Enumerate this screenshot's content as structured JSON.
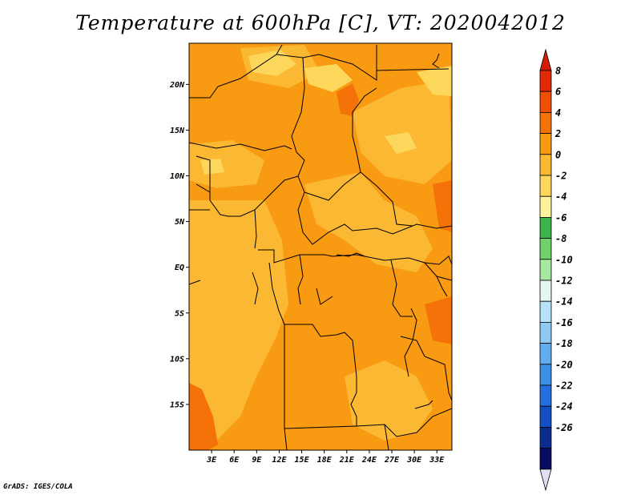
{
  "title": "Temperature at 600hPa [C], VT: 2020042012",
  "credit": "GrADS: IGES/COLA",
  "map": {
    "lon_range": [
      0,
      35
    ],
    "lat_range": [
      -20,
      24.5
    ],
    "lat_ticks": [
      {
        "value": 20,
        "label": "20N"
      },
      {
        "value": 15,
        "label": "15N"
      },
      {
        "value": 10,
        "label": "10N"
      },
      {
        "value": 5,
        "label": "5N"
      },
      {
        "value": 0,
        "label": "EQ"
      },
      {
        "value": -5,
        "label": "5S"
      },
      {
        "value": -10,
        "label": "10S"
      },
      {
        "value": -15,
        "label": "15S"
      }
    ],
    "lon_ticks": [
      {
        "value": 3,
        "label": "3E"
      },
      {
        "value": 6,
        "label": "6E"
      },
      {
        "value": 9,
        "label": "9E"
      },
      {
        "value": 12,
        "label": "12E"
      },
      {
        "value": 15,
        "label": "15E"
      },
      {
        "value": 18,
        "label": "18E"
      },
      {
        "value": 21,
        "label": "21E"
      },
      {
        "value": 24,
        "label": "24E"
      },
      {
        "value": 27,
        "label": "27E"
      },
      {
        "value": 30,
        "label": "30E"
      },
      {
        "value": 33,
        "label": "33E"
      }
    ]
  },
  "colorbar": {
    "levels": [
      "8",
      "6",
      "4",
      "2",
      "0",
      "-2",
      "-4",
      "-6",
      "-8",
      "-10",
      "-12",
      "-14",
      "-16",
      "-18",
      "-20",
      "-22",
      "-24",
      "-26"
    ],
    "colors": [
      "#e12b06",
      "#ee4f04",
      "#f57208",
      "#f89a12",
      "#fbb833",
      "#fdd75b",
      "#fef29c",
      "#3cb44b",
      "#6fd36a",
      "#a8e8a0",
      "#e4f7f0",
      "#b6e2f8",
      "#8ecaf4",
      "#62adef",
      "#3e8fe6",
      "#2370dc",
      "#1450c3",
      "#0a2c8c",
      "#080c60"
    ],
    "top_arrow_color": "#d41c05",
    "bottom_arrow_color": "#e0e0f4"
  }
}
